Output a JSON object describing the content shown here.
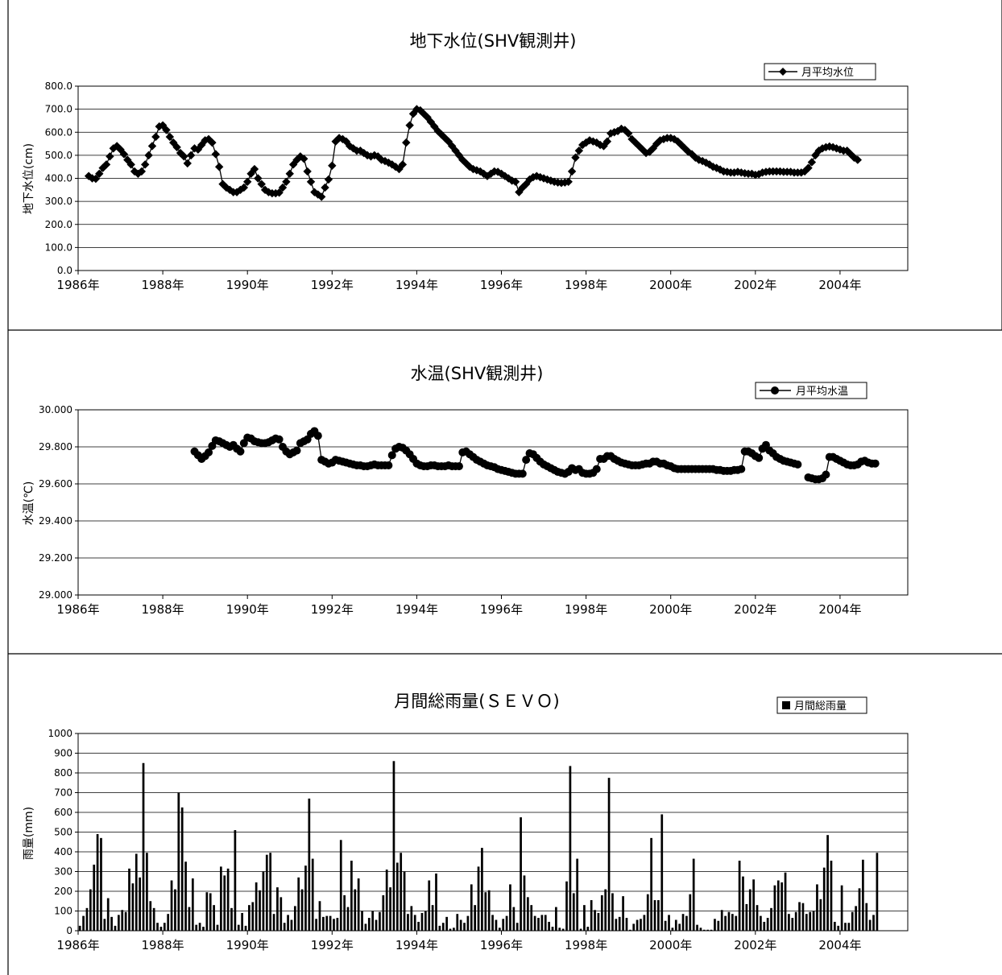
{
  "chart_data": [
    {
      "type": "line",
      "title": "地下水位(SHV観測井)",
      "ylabel": "地下水位(cm)",
      "xlabel": "",
      "legend": "top-right",
      "legend_label": "月平均水位",
      "marker": "diamond",
      "grid": true,
      "ylim": [
        0,
        800
      ],
      "ytick_labels": [
        "0.0",
        "100.0",
        "200.0",
        "300.0",
        "400.0",
        "500.0",
        "600.0",
        "700.0",
        "800.0"
      ],
      "xlim": [
        1986,
        2005.6
      ],
      "x_ticks": [
        1986,
        1988,
        1990,
        1992,
        1994,
        1996,
        1998,
        2000,
        2002,
        2004
      ],
      "xtick_labels": [
        "1986年",
        "1988年",
        "1990年",
        "1992年",
        "1994年",
        "1996年",
        "1998年",
        "2000年",
        "2002年",
        "2004年"
      ],
      "series": [
        {
          "name": "月平均水位",
          "x_start": 1986.25,
          "x_step": 0.0833333,
          "values": [
            410,
            400,
            398,
            420,
            445,
            460,
            495,
            530,
            540,
            525,
            505,
            480,
            460,
            430,
            420,
            430,
            460,
            500,
            540,
            580,
            625,
            630,
            610,
            580,
            555,
            535,
            510,
            495,
            465,
            500,
            530,
            525,
            545,
            565,
            570,
            555,
            505,
            450,
            375,
            360,
            350,
            340,
            340,
            350,
            360,
            385,
            420,
            440,
            400,
            375,
            350,
            340,
            335,
            335,
            338,
            360,
            385,
            420,
            460,
            480,
            495,
            485,
            430,
            385,
            340,
            330,
            320,
            360,
            395,
            455,
            560,
            575,
            570,
            560,
            540,
            530,
            520,
            520,
            510,
            500,
            495,
            500,
            495,
            480,
            475,
            468,
            460,
            450,
            440,
            460,
            555,
            630,
            680,
            700,
            695,
            680,
            665,
            645,
            625,
            605,
            590,
            575,
            560,
            540,
            520,
            500,
            480,
            465,
            450,
            440,
            435,
            430,
            420,
            410,
            420,
            430,
            428,
            420,
            410,
            400,
            390,
            385,
            340,
            360,
            375,
            395,
            405,
            410,
            405,
            400,
            395,
            390,
            385,
            382,
            380,
            382,
            385,
            430,
            490,
            520,
            545,
            555,
            565,
            560,
            555,
            545,
            540,
            560,
            595,
            600,
            605,
            615,
            610,
            595,
            570,
            555,
            540,
            525,
            510,
            515,
            530,
            550,
            565,
            570,
            575,
            575,
            570,
            560,
            545,
            530,
            515,
            505,
            490,
            480,
            475,
            468,
            460,
            450,
            445,
            438,
            430,
            428,
            425,
            425,
            428,
            425,
            422,
            420,
            420,
            415,
            418,
            425,
            428,
            430,
            430,
            430,
            430,
            428,
            428,
            428,
            425,
            425,
            425,
            430,
            445,
            470,
            500,
            520,
            530,
            535,
            538,
            535,
            530,
            525,
            520,
            520,
            505,
            490,
            480
          ]
        }
      ]
    },
    {
      "type": "line",
      "title": "水温(SHV観測井)",
      "ylabel": "水温(℃)",
      "xlabel": "",
      "legend": "top-right",
      "legend_label": "月平均水温",
      "marker": "circle",
      "grid": true,
      "ylim": [
        29.0,
        30.0
      ],
      "ytick_labels": [
        "29.000",
        "29.200",
        "29.400",
        "29.600",
        "29.800",
        "30.000"
      ],
      "xlim": [
        1986,
        2005.6
      ],
      "x_ticks": [
        1986,
        1988,
        1990,
        1992,
        1994,
        1996,
        1998,
        2000,
        2002,
        2004
      ],
      "xtick_labels": [
        "1986年",
        "1988年",
        "1990年",
        "1992年",
        "1994年",
        "1996年",
        "1998年",
        "2000年",
        "2002年",
        "2004年"
      ],
      "series": [
        {
          "name": "月平均水温",
          "segments": [
            {
              "x_start": 1988.75,
              "x_step": 0.0833333,
              "values": [
                29.775,
                29.755,
                29.735,
                29.75,
                29.77,
                29.805,
                29.835,
                29.83,
                29.82,
                29.81,
                29.8,
                29.81,
                29.79,
                29.775,
                29.82,
                29.85,
                29.845,
                29.83,
                29.825,
                29.82,
                29.82,
                29.825,
                29.835,
                29.845,
                29.84,
                29.8,
                29.775,
                29.76,
                29.77,
                29.78,
                29.82,
                29.83,
                29.84,
                29.87,
                29.885,
                29.86,
                29.73,
                29.72,
                29.71,
                29.715,
                29.73,
                29.725,
                29.72,
                29.715,
                29.71,
                29.705,
                29.7,
                29.7,
                29.695,
                29.695,
                29.7,
                29.705,
                29.7,
                29.7,
                29.7,
                29.7,
                29.755,
                29.79,
                29.8,
                29.795,
                29.78,
                29.76,
                29.735,
                29.71,
                29.7,
                29.695,
                29.695,
                29.7,
                29.7,
                29.695,
                29.695,
                29.695,
                29.7,
                29.695,
                29.695,
                29.695,
                29.77,
                29.775,
                29.76,
                29.745,
                29.73,
                29.72,
                29.71,
                29.7,
                29.695,
                29.69,
                29.68,
                29.675,
                29.67,
                29.665,
                29.66,
                29.655,
                29.655,
                29.655,
                29.73,
                29.765,
                29.76,
                29.74,
                29.72,
                29.705,
                29.695,
                29.685,
                29.675,
                29.665,
                29.66,
                29.655
              ]
            },
            {
              "x_start": 1997.5,
              "x_step": 0.0833333,
              "values": [
                29.655,
                29.665,
                29.685,
                29.675,
                29.68,
                29.66,
                29.655,
                29.655,
                29.66,
                29.68,
                29.735,
                29.735,
                29.75,
                29.75,
                29.735,
                29.725,
                29.715,
                29.71,
                29.705,
                29.7,
                29.7,
                29.7,
                29.705,
                29.71,
                29.71,
                29.72,
                29.72,
                29.71,
                29.71,
                29.7,
                29.695,
                29.685,
                29.68,
                29.68,
                29.68,
                29.68,
                29.68,
                29.68,
                29.68,
                29.68,
                29.68,
                29.68,
                29.68,
                29.675,
                29.675,
                29.67,
                29.67,
                29.67,
                29.675,
                29.675,
                29.68,
                29.775,
                29.775,
                29.765,
                29.75,
                29.74,
                29.79,
                29.81,
                29.78,
                29.765,
                29.745,
                29.735,
                29.725,
                29.72,
                29.715,
                29.71,
                29.705
              ]
            },
            {
              "x_start": 2003.25,
              "x_step": 0.0833333,
              "values": [
                29.635,
                29.63,
                29.625,
                29.625,
                29.63,
                29.65,
                29.745,
                29.745,
                29.735,
                29.725,
                29.715,
                29.705,
                29.7,
                29.7,
                29.705,
                29.72,
                29.725,
                29.715,
                29.71,
                29.71
              ]
            }
          ]
        }
      ]
    },
    {
      "type": "bar",
      "title": "月間総雨量(ＳＥＶＯ)",
      "ylabel": "雨量(mm)",
      "xlabel": "",
      "legend": "top-right",
      "legend_label": "月間総雨量",
      "grid": true,
      "ylim": [
        0,
        1000
      ],
      "ytick_labels": [
        "0",
        "100",
        "200",
        "300",
        "400",
        "500",
        "600",
        "700",
        "800",
        "900",
        "1000"
      ],
      "xlim": [
        1986,
        2005.6
      ],
      "x_ticks": [
        1986,
        1988,
        1990,
        1992,
        1994,
        1996,
        1998,
        2000,
        2002,
        2004
      ],
      "xtick_labels": [
        "1986年",
        "1988年",
        "1990年",
        "1992年",
        "1994年",
        "1996年",
        "1998年",
        "2000年",
        "2002年",
        "2004年"
      ],
      "series": [
        {
          "name": "月間総雨量",
          "x_start": 1986.0,
          "x_step": 0.0833333,
          "values": [
            25,
            75,
            115,
            210,
            335,
            490,
            470,
            60,
            165,
            70,
            25,
            80,
            105,
            95,
            315,
            240,
            390,
            270,
            850,
            395,
            150,
            115,
            40,
            20,
            40,
            85,
            255,
            210,
            700,
            625,
            350,
            120,
            265,
            30,
            40,
            20,
            195,
            190,
            130,
            30,
            325,
            280,
            315,
            115,
            510,
            30,
            90,
            25,
            130,
            145,
            245,
            205,
            300,
            385,
            395,
            85,
            220,
            170,
            40,
            80,
            55,
            125,
            270,
            210,
            330,
            670,
            365,
            60,
            150,
            70,
            75,
            75,
            60,
            65,
            460,
            180,
            120,
            355,
            210,
            265,
            100,
            35,
            65,
            100,
            55,
            95,
            180,
            310,
            220,
            860,
            345,
            395,
            300,
            85,
            125,
            80,
            45,
            90,
            100,
            255,
            130,
            290,
            25,
            40,
            70,
            10,
            15,
            85,
            55,
            40,
            75,
            235,
            130,
            325,
            420,
            195,
            205,
            80,
            55,
            15,
            60,
            75,
            235,
            120,
            40,
            575,
            280,
            170,
            130,
            75,
            65,
            80,
            80,
            45,
            20,
            120,
            15,
            10,
            250,
            835,
            190,
            365,
            10,
            130,
            20,
            155,
            105,
            90,
            180,
            210,
            775,
            190,
            60,
            70,
            175,
            65,
            5,
            35,
            55,
            60,
            80,
            185,
            470,
            155,
            155,
            590,
            50,
            80,
            15,
            55,
            35,
            85,
            75,
            185,
            365,
            30,
            15,
            5,
            5,
            5,
            60,
            50,
            105,
            75,
            95,
            85,
            75,
            355,
            275,
            135,
            210,
            260,
            130,
            75,
            45,
            65,
            115,
            230,
            255,
            245,
            295,
            85,
            65,
            95,
            145,
            140,
            85,
            95,
            100,
            235,
            160,
            320,
            485,
            355,
            45,
            25,
            230,
            40,
            40,
            95,
            125,
            215,
            360,
            140,
            55,
            80,
            395
          ]
        }
      ]
    }
  ]
}
